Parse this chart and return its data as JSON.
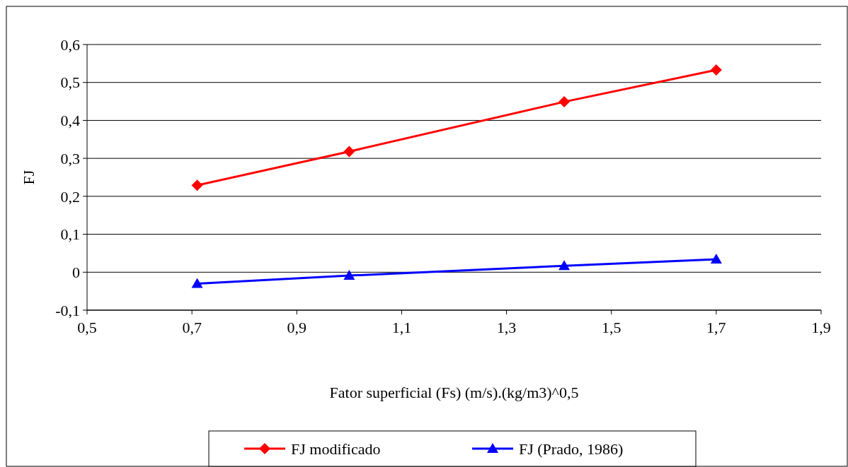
{
  "chart_data": {
    "type": "line",
    "xlabel": "Fator superficial (Fs) (m/s).(kg/m3)^0,5",
    "ylabel": "FJ",
    "xlim": [
      0.5,
      1.9
    ],
    "xticks": [
      {
        "value": 0.5,
        "label": "0,5"
      },
      {
        "value": 0.7,
        "label": "0,7"
      },
      {
        "value": 0.9,
        "label": "0,9"
      },
      {
        "value": 1.1,
        "label": "1,1"
      },
      {
        "value": 1.3,
        "label": "1,3"
      },
      {
        "value": 1.5,
        "label": "1,5"
      },
      {
        "value": 1.7,
        "label": "1,7"
      },
      {
        "value": 1.9,
        "label": "1,9"
      }
    ],
    "ylim": [
      -0.1,
      0.6
    ],
    "yticks": [
      {
        "value": -0.1,
        "label": "-0,1"
      },
      0,
      {
        "value": 0.1,
        "label": "0,1"
      },
      {
        "value": 0.2,
        "label": "0,2"
      },
      {
        "value": 0.3,
        "label": "0,3"
      },
      {
        "value": 0.4,
        "label": "0,4"
      },
      {
        "value": 0.5,
        "label": "0,5"
      },
      {
        "value": 0.6,
        "label": "0,6"
      }
    ],
    "grid": "y",
    "legend": "bottom",
    "series": [
      {
        "name": "FJ modificado",
        "color": "#ff0000",
        "marker": "diamond",
        "x": [
          0.71,
          1.0,
          1.41,
          1.7
        ],
        "values": [
          0.229,
          0.318,
          0.449,
          0.533
        ]
      },
      {
        "name": "FJ (Prado, 1986)",
        "color": "#0000ff",
        "marker": "triangle",
        "x": [
          0.71,
          1.0,
          1.41,
          1.7
        ],
        "values": [
          -0.03,
          -0.009,
          0.017,
          0.034
        ]
      }
    ]
  }
}
